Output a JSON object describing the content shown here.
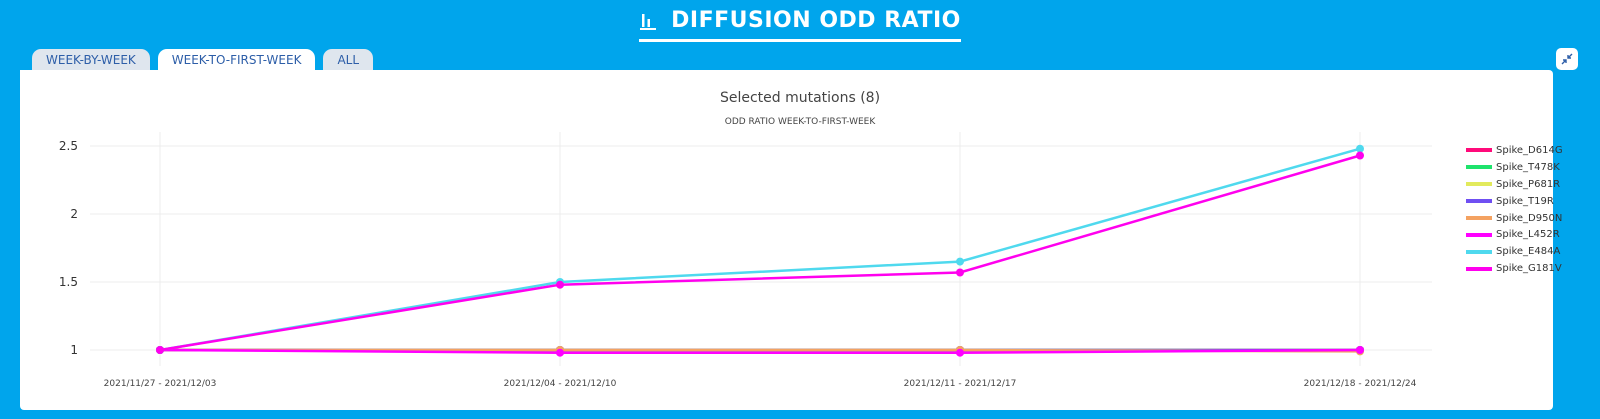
{
  "header": {
    "title": "DIFFUSION ODD RATIO",
    "icon": "bar-chart-icon"
  },
  "tabs": [
    {
      "label": "WEEK-BY-WEEK",
      "active": false
    },
    {
      "label": "WEEK-TO-FIRST-WEEK",
      "active": true
    },
    {
      "label": "ALL",
      "active": false
    }
  ],
  "collapse_icon": "collapse-arrows-icon",
  "colors": {
    "background": "#00a5ec",
    "panel": "#ffffff",
    "tab_text": "#2d5ea8"
  },
  "chart_data": {
    "type": "line",
    "title": "Selected mutations (8)",
    "subtitle": "ODD RATIO WEEK-TO-FIRST-WEEK",
    "xlabel": "",
    "ylabel": "",
    "categories": [
      "2021/11/27 - 2021/12/03",
      "2021/12/04 - 2021/12/10",
      "2021/12/11 - 2021/12/17",
      "2021/12/18 - 2021/12/24"
    ],
    "yticks": [
      "1",
      "1.5",
      "2",
      "2.5"
    ],
    "ylim": [
      0.9,
      2.6
    ],
    "grid": true,
    "legend_position": "right",
    "series": [
      {
        "name": "Spike_D614G",
        "color": "#ff0a7a",
        "values": [
          1,
          1.0,
          1.0,
          1.0
        ]
      },
      {
        "name": "Spike_T478K",
        "color": "#1ee36c",
        "values": [
          1,
          1.0,
          1.0,
          1.0
        ]
      },
      {
        "name": "Spike_P681R",
        "color": "#e2ea5c",
        "values": [
          1,
          1.0,
          1.0,
          1.0
        ]
      },
      {
        "name": "Spike_T19R",
        "color": "#6f4ff2",
        "values": [
          1,
          1.0,
          1.0,
          1.0
        ]
      },
      {
        "name": "Spike_D950N",
        "color": "#f4a261",
        "values": [
          1,
          1.0,
          1.0,
          0.99
        ]
      },
      {
        "name": "Spike_L452R",
        "color": "#ff00ff",
        "values": [
          1,
          0.98,
          0.98,
          1.0
        ]
      },
      {
        "name": "Spike_E484A",
        "color": "#4fd9ee",
        "values": [
          1,
          1.5,
          1.65,
          2.48
        ]
      },
      {
        "name": "Spike_G181V",
        "color": "#ff00ee",
        "values": [
          1,
          1.48,
          1.57,
          2.43
        ]
      }
    ]
  }
}
